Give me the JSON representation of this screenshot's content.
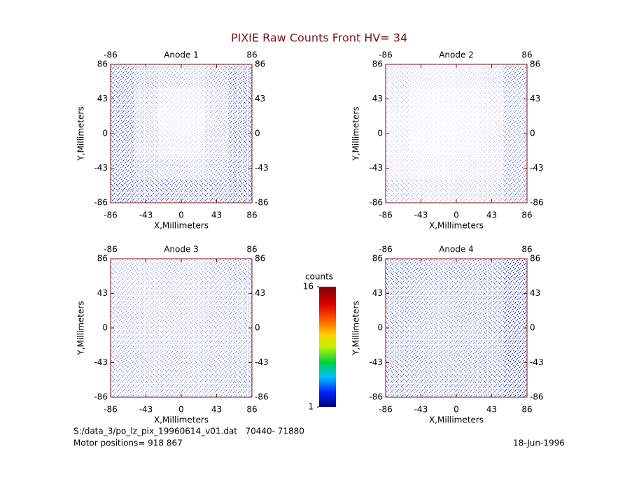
{
  "title": "PIXIE Raw Counts Front HV= 34",
  "chart_data": [
    {
      "type": "heatmap",
      "title": "Anode 1",
      "xlabel": "X,Millimeters",
      "ylabel": "Y,Millimeters",
      "xlim": [
        -86,
        86
      ],
      "ylim": [
        -86,
        86
      ],
      "xticks": [
        -86,
        -43,
        0,
        43,
        86
      ],
      "yticks": [
        -86,
        -43,
        0,
        43,
        86
      ],
      "top_ticks": [
        -86,
        86
      ],
      "z": [
        [
          3,
          2,
          1.5,
          1.5,
          2,
          3
        ],
        [
          3,
          1.5,
          0.8,
          0.8,
          1.5,
          3
        ],
        [
          3,
          1.5,
          0.6,
          0.6,
          1.5,
          3
        ],
        [
          3,
          1.5,
          0.8,
          0.8,
          1.5,
          3
        ],
        [
          3,
          2,
          1.5,
          1.5,
          2,
          3
        ],
        [
          3.5,
          3,
          3,
          3,
          3,
          3.5
        ]
      ]
    },
    {
      "type": "heatmap",
      "title": "Anode 2",
      "xlabel": "X,Millimeters",
      "ylabel": "Y,Millimeters",
      "xlim": [
        -86,
        86
      ],
      "ylim": [
        -86,
        86
      ],
      "xticks": [
        -86,
        -43,
        0,
        43,
        86
      ],
      "yticks": [
        -86,
        -43,
        0,
        43,
        86
      ],
      "top_ticks": [
        -86,
        86
      ],
      "z": [
        [
          1.2,
          0.8,
          0.8,
          0.9,
          1.2,
          2.5
        ],
        [
          1,
          0.6,
          0.5,
          0.6,
          0.9,
          2
        ],
        [
          0.8,
          0.5,
          0.4,
          0.5,
          0.8,
          2
        ],
        [
          0.8,
          0.5,
          0.5,
          0.6,
          0.9,
          2
        ],
        [
          1,
          0.7,
          0.7,
          0.8,
          1,
          2.2
        ],
        [
          1.5,
          1.2,
          1.2,
          1.3,
          1.5,
          2.5
        ]
      ]
    },
    {
      "type": "heatmap",
      "title": "Anode 3",
      "xlabel": "X,Millimeters",
      "ylabel": "Y,Millimeters",
      "xlim": [
        -86,
        86
      ],
      "ylim": [
        -86,
        86
      ],
      "xticks": [
        -86,
        -43,
        0,
        43,
        86
      ],
      "yticks": [
        -86,
        -43,
        0,
        43,
        86
      ],
      "top_ticks": [
        -86,
        86
      ],
      "z": [
        [
          1.5,
          1.5,
          1.5,
          1.5,
          1.8,
          2.2
        ],
        [
          1.6,
          1.5,
          1.5,
          1.5,
          1.7,
          2
        ],
        [
          1.7,
          1.6,
          1.5,
          1.6,
          1.7,
          1.9
        ],
        [
          1.8,
          1.7,
          1.6,
          1.7,
          1.8,
          2
        ],
        [
          1.9,
          1.8,
          1.8,
          1.8,
          1.9,
          2.1
        ],
        [
          2,
          1.9,
          1.9,
          1.9,
          2,
          2.3
        ]
      ]
    },
    {
      "type": "heatmap",
      "title": "Anode 4",
      "xlabel": "X,Millimeters",
      "ylabel": "Y,Millimeters",
      "xlim": [
        -86,
        86
      ],
      "ylim": [
        -86,
        86
      ],
      "xticks": [
        -86,
        -43,
        0,
        43,
        86
      ],
      "yticks": [
        -86,
        -43,
        0,
        43,
        86
      ],
      "top_ticks": [
        -86,
        86
      ],
      "z": [
        [
          2.8,
          2.6,
          2.5,
          2.5,
          2.8,
          3.8
        ],
        [
          2.6,
          2.3,
          2.2,
          2.3,
          2.6,
          3.6
        ],
        [
          2.5,
          2.2,
          2.1,
          2.2,
          2.5,
          3.6
        ],
        [
          2.5,
          2.2,
          2.2,
          2.3,
          2.6,
          3.6
        ],
        [
          2.6,
          2.4,
          2.3,
          2.4,
          2.7,
          3.7
        ],
        [
          2.8,
          2.6,
          2.5,
          2.6,
          2.9,
          3.8
        ]
      ]
    }
  ],
  "colorbar": {
    "label": "counts",
    "zlim": [
      1,
      16
    ],
    "ticks": [
      1,
      16
    ]
  },
  "footer": {
    "file": "S:/data_3/po_lz_pix_19960614_v01.dat   70440- 71880",
    "motor": "Motor positions= 918 867",
    "date": "18-Jun-1996"
  }
}
